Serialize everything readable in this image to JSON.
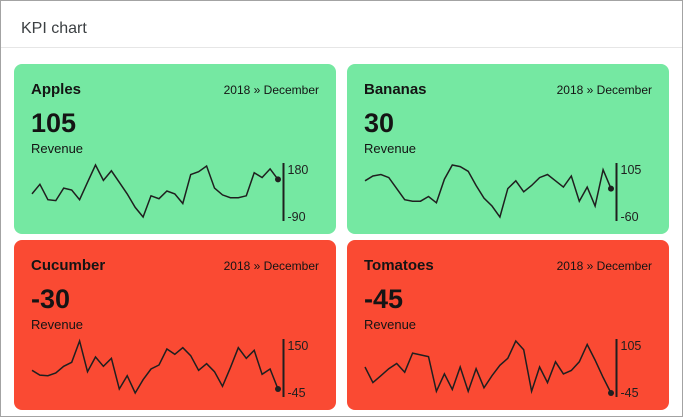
{
  "window": {
    "title": "KPI chart"
  },
  "colors": {
    "positive_bg": "#75e8a2",
    "negative_bg": "#fa4a33",
    "line": "#1f1f1f",
    "page_title": "#3c4043",
    "page_border": "#a3a3a3"
  },
  "cards": [
    {
      "title": "Apples",
      "period": "2018 » December",
      "value": "105",
      "label": "Revenue",
      "status": "positive"
    },
    {
      "title": "Bananas",
      "period": "2018 » December",
      "value": "30",
      "label": "Revenue",
      "status": "positive"
    },
    {
      "title": "Cucumber",
      "period": "2018 » December",
      "value": "-30",
      "label": "Revenue",
      "status": "negative"
    },
    {
      "title": "Tomatoes",
      "period": "2018 » December",
      "value": "-45",
      "label": "Revenue",
      "status": "negative"
    }
  ],
  "chart_data": [
    {
      "type": "line",
      "name": "Apples",
      "ylabel": "Revenue",
      "period": "2018 December",
      "values": [
        30,
        80,
        0,
        -5,
        60,
        50,
        0,
        90,
        180,
        100,
        150,
        90,
        30,
        -40,
        -90,
        20,
        5,
        45,
        30,
        -20,
        130,
        145,
        175,
        60,
        25,
        10,
        10,
        20,
        140,
        115,
        160,
        105
      ],
      "ylim": [
        -90,
        180
      ],
      "max_label": "180",
      "min_label": "-90",
      "last_value": 105,
      "grid": false,
      "legend": false
    },
    {
      "type": "line",
      "name": "Bananas",
      "ylabel": "Revenue",
      "period": "2018 December",
      "values": [
        55,
        70,
        75,
        65,
        30,
        -5,
        -10,
        -10,
        5,
        -15,
        60,
        105,
        100,
        85,
        40,
        0,
        -25,
        -60,
        30,
        55,
        20,
        40,
        65,
        75,
        55,
        35,
        70,
        -10,
        35,
        -25,
        90,
        30
      ],
      "ylim": [
        -60,
        105
      ],
      "max_label": "105",
      "min_label": "-60",
      "last_value": 30,
      "grid": false,
      "legend": false
    },
    {
      "type": "line",
      "name": "Cucumber",
      "ylabel": "Revenue",
      "period": "2018 December",
      "values": [
        40,
        22,
        20,
        30,
        55,
        70,
        150,
        35,
        90,
        55,
        85,
        -30,
        20,
        -45,
        5,
        45,
        60,
        120,
        100,
        125,
        95,
        40,
        65,
        35,
        -20,
        50,
        125,
        85,
        115,
        25,
        45,
        -30
      ],
      "ylim": [
        -45,
        150
      ],
      "max_label": "150",
      "min_label": "-45",
      "last_value": -30,
      "grid": false,
      "legend": false
    },
    {
      "type": "line",
      "name": "Tomatoes",
      "ylabel": "Revenue",
      "period": "2018 December",
      "values": [
        30,
        -15,
        5,
        25,
        40,
        15,
        70,
        65,
        60,
        -40,
        10,
        -35,
        30,
        -40,
        25,
        -30,
        5,
        35,
        55,
        105,
        80,
        -40,
        30,
        -15,
        45,
        10,
        20,
        45,
        95,
        50,
        0,
        -45
      ],
      "ylim": [
        -45,
        105
      ],
      "max_label": "105",
      "min_label": "-45",
      "last_value": -45,
      "grid": false,
      "legend": false
    }
  ]
}
